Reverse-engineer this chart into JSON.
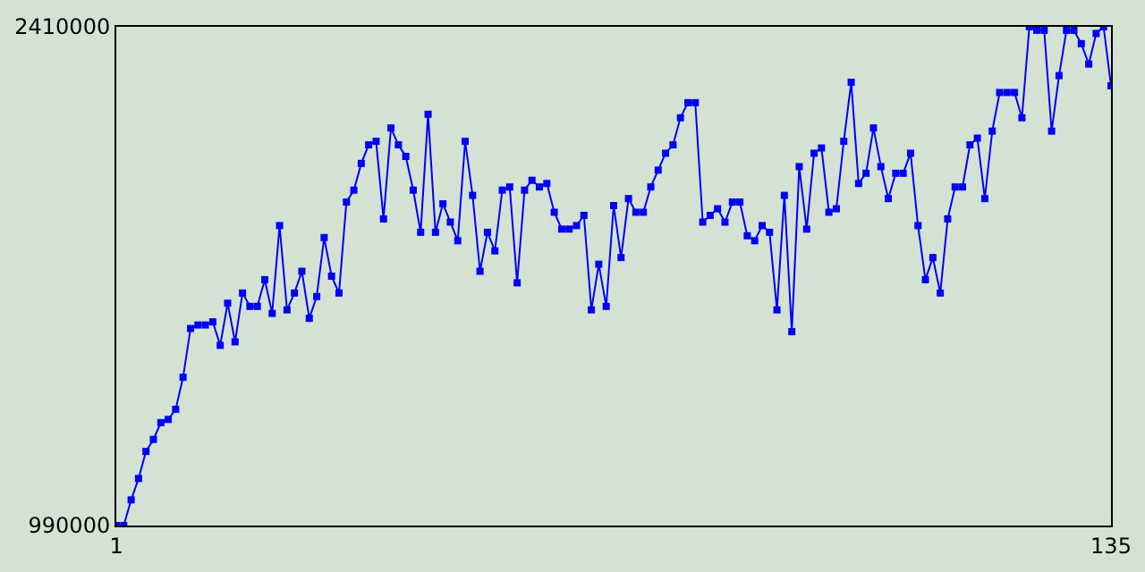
{
  "chart_data": {
    "type": "line",
    "x": [
      1,
      2,
      3,
      4,
      5,
      6,
      7,
      8,
      9,
      10,
      11,
      12,
      13,
      14,
      15,
      16,
      17,
      18,
      19,
      20,
      21,
      22,
      23,
      24,
      25,
      26,
      27,
      28,
      29,
      30,
      31,
      32,
      33,
      34,
      35,
      36,
      37,
      38,
      39,
      40,
      41,
      42,
      43,
      44,
      45,
      46,
      47,
      48,
      49,
      50,
      51,
      52,
      53,
      54,
      55,
      56,
      57,
      58,
      59,
      60,
      61,
      62,
      63,
      64,
      65,
      66,
      67,
      68,
      69,
      70,
      71,
      72,
      73,
      74,
      75,
      76,
      77,
      78,
      79,
      80,
      81,
      82,
      83,
      84,
      85,
      86,
      87,
      88,
      89,
      90,
      91,
      92,
      93,
      94,
      95,
      96,
      97,
      98,
      99,
      100,
      101,
      102,
      103,
      104,
      105,
      106,
      107,
      108,
      109,
      110,
      111,
      112,
      113,
      114,
      115,
      116,
      117,
      118,
      119,
      120,
      121,
      122,
      123,
      124,
      125,
      126,
      127,
      128,
      129,
      130,
      131,
      132,
      133,
      134,
      135
    ],
    "series": [
      {
        "color": "#0000ff",
        "values": [
          990000,
          990000,
          1063000,
          1124000,
          1201000,
          1235000,
          1283000,
          1292000,
          1321000,
          1412000,
          1551000,
          1561000,
          1561000,
          1570000,
          1503000,
          1623000,
          1513000,
          1652000,
          1614000,
          1614000,
          1690000,
          1594000,
          1844000,
          1604000,
          1652000,
          1714000,
          1580000,
          1642000,
          1810000,
          1700000,
          1652000,
          1911000,
          1945000,
          2021000,
          2074000,
          2084000,
          1863000,
          2122000,
          2074000,
          2041000,
          1945000,
          1825000,
          2161000,
          1825000,
          1906000,
          1854000,
          1801000,
          2084000,
          1930000,
          1714000,
          1825000,
          1772000,
          1945000,
          1954000,
          1681000,
          1945000,
          1973000,
          1954000,
          1964000,
          1882000,
          1834000,
          1834000,
          1844000,
          1873000,
          1604000,
          1734000,
          1614000,
          1901000,
          1753000,
          1921000,
          1882000,
          1882000,
          1954000,
          2002000,
          2050000,
          2074000,
          2151000,
          2194000,
          2194000,
          1854000,
          1873000,
          1892000,
          1854000,
          1911000,
          1911000,
          1815000,
          1801000,
          1844000,
          1825000,
          1604000,
          1930000,
          1542000,
          2012000,
          1834000,
          2050000,
          2065000,
          1882000,
          1892000,
          2084000,
          2252000,
          1964000,
          1993000,
          2122000,
          2012000,
          1921000,
          1993000,
          1993000,
          2050000,
          1844000,
          1690000,
          1753000,
          1652000,
          1863000,
          1954000,
          1954000,
          2074000,
          2093000,
          1921000,
          2113000,
          2223000,
          2223000,
          2223000,
          2151000,
          2410000,
          2400000,
          2400000,
          2113000,
          2271000,
          2400000,
          2400000,
          2362000,
          2304000,
          2391000,
          2410000,
          2242000
        ]
      }
    ],
    "xlim": [
      1,
      135
    ],
    "xticks": [
      1,
      135
    ],
    "ylim": [
      990000,
      2410000
    ],
    "yticks": [
      990000,
      2410000
    ],
    "marker": "square",
    "line_style": "solid"
  }
}
